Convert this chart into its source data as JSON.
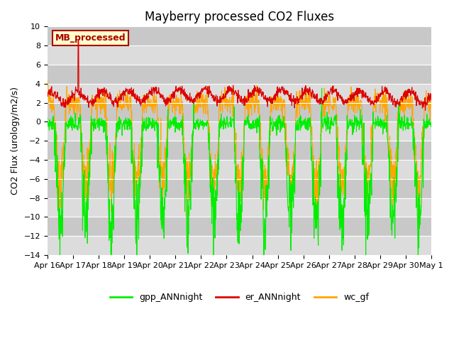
{
  "title": "Mayberry processed CO2 Fluxes",
  "ylabel": "CO2 Flux (urology/m2/s)",
  "ylim": [
    -14,
    10
  ],
  "yticks": [
    -14,
    -12,
    -10,
    -8,
    -6,
    -4,
    -2,
    0,
    2,
    4,
    6,
    8,
    10
  ],
  "xlabels": [
    "Apr 16",
    "Apr 17",
    "Apr 18",
    "Apr 19",
    "Apr 20",
    "Apr 21",
    "Apr 22",
    "Apr 23",
    "Apr 24",
    "Apr 25",
    "Apr 26",
    "Apr 27",
    "Apr 28",
    "Apr 29",
    "Apr 30",
    "May 1"
  ],
  "n_days": 15,
  "n_per_day": 96,
  "color_gpp": "#00EE00",
  "color_er": "#DD0000",
  "color_wc": "#FFA500",
  "legend_label": "MB_processed",
  "legend_bg": "#FFFFCC",
  "legend_border": "#AA0000",
  "legend_text_color": "#AA0000",
  "line_width": 0.8,
  "plot_bg": "#DCDCDC",
  "band_light": "#DCDCDC",
  "band_dark": "#C8C8C8",
  "title_fontsize": 12,
  "label_fontsize": 9,
  "tick_fontsize": 8
}
